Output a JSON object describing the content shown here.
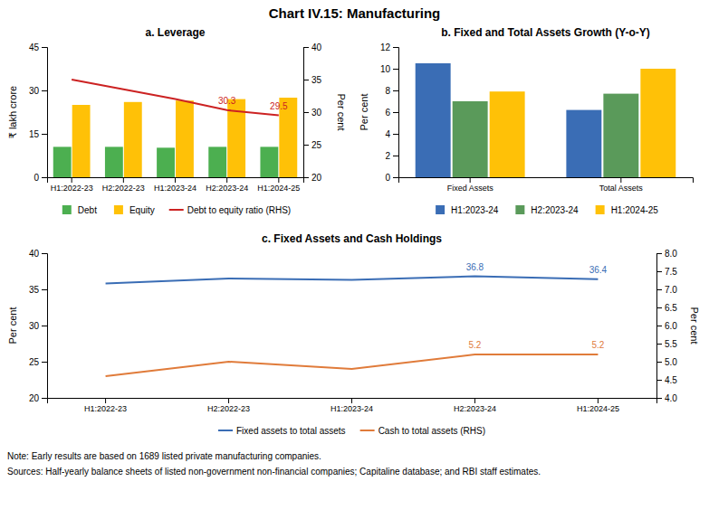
{
  "title": "Chart IV.15: Manufacturing",
  "chart_data": [
    {
      "type": "bar",
      "title": "a. Leverage",
      "categories": [
        "H1:2022-23",
        "H2:2022-23",
        "H1:2023-24",
        "H2:2023-24",
        "H1:2024-25"
      ],
      "series": [
        {
          "name": "Debt",
          "color": "#4CAF50",
          "values": [
            10.5,
            10.5,
            10.2,
            10.5,
            10.5
          ]
        },
        {
          "name": "Equity",
          "color": "#FFC107",
          "values": [
            25.0,
            26.0,
            26.5,
            27.0,
            27.5
          ]
        },
        {
          "name": "Debt to equity ratio (RHS)",
          "color": "#CC2222",
          "type": "line",
          "axis": "y2",
          "values": [
            35.0,
            33.5,
            32.0,
            30.3,
            29.5
          ]
        }
      ],
      "ylabel": "₹ lakh crore",
      "y2label": "Per cent",
      "ylim": [
        0,
        45
      ],
      "yticks": [
        0,
        15,
        30,
        45
      ],
      "y2lim": [
        20,
        40
      ],
      "y2ticks": [
        20,
        25,
        30,
        35,
        40
      ],
      "annotations": [
        {
          "text": "30.3",
          "x": "H2:2023-24",
          "y": 30.3,
          "axis": "y2"
        },
        {
          "text": "29.5",
          "x": "H1:2024-25",
          "y": 29.5,
          "axis": "y2"
        }
      ],
      "grid": false,
      "legend": "bottom"
    },
    {
      "type": "bar",
      "title": "b. Fixed and Total Assets Growth (Y-o-Y)",
      "categories": [
        "Fixed Assets",
        "Total Assets"
      ],
      "series": [
        {
          "name": "H1:2023-24",
          "color": "#3A6DB5",
          "values": [
            10.5,
            6.2
          ]
        },
        {
          "name": "H2:2023-24",
          "color": "#5A9A5A",
          "values": [
            7.0,
            7.7
          ]
        },
        {
          "name": "H1:2024-25",
          "color": "#FFC107",
          "values": [
            7.9,
            10.0
          ]
        }
      ],
      "ylabel": "Per cent",
      "ylim": [
        0,
        12
      ],
      "yticks": [
        0,
        2,
        4,
        6,
        8,
        10,
        12
      ],
      "grid": false,
      "legend": "bottom"
    },
    {
      "type": "line",
      "title": "c. Fixed Assets and Cash Holdings",
      "categories": [
        "H1:2022-23",
        "H2:2022-23",
        "H1:2023-24",
        "H2:2023-24",
        "H1:2024-25"
      ],
      "series": [
        {
          "name": "Fixed assets to total assets",
          "color": "#3A6DB5",
          "values": [
            35.8,
            36.5,
            36.3,
            36.8,
            36.4
          ]
        },
        {
          "name": "Cash to total assets (RHS)",
          "color": "#E07B3A",
          "axis": "y2",
          "values": [
            4.6,
            5.0,
            4.8,
            5.2,
            5.2
          ]
        }
      ],
      "ylabel": "Per cent",
      "y2label": "Per cent",
      "ylim": [
        20,
        40
      ],
      "yticks": [
        20,
        25,
        30,
        35,
        40
      ],
      "y2lim": [
        4.0,
        8.0
      ],
      "y2ticks": [
        {
          "value": 4.0,
          "label": "4.0"
        },
        {
          "value": 4.5,
          "label": "4.5"
        },
        {
          "value": 5.0,
          "label": "5.0"
        },
        {
          "value": 5.5,
          "label": "5.5"
        },
        {
          "value": 6.0,
          "label": "6.0"
        },
        {
          "value": 6.5,
          "label": "6.5"
        },
        {
          "value": 7.0,
          "label": "7.0"
        },
        {
          "value": 7.5,
          "label": "7.5"
        },
        {
          "value": 8.0,
          "label": "8.0"
        }
      ],
      "annotations": [
        {
          "text": "36.8",
          "x": "H2:2023-24",
          "y": 36.8,
          "axis": "y"
        },
        {
          "text": "36.4",
          "x": "H1:2024-25",
          "y": 36.4,
          "axis": "y"
        },
        {
          "text": "5.2",
          "x": "H2:2023-24",
          "y": 5.2,
          "axis": "y2"
        },
        {
          "text": "5.2",
          "x": "H1:2024-25",
          "y": 5.2,
          "axis": "y2"
        }
      ],
      "grid": false,
      "legend": "bottom"
    }
  ],
  "annotations": [
    "Note: Early results are based on 1689 listed private manufacturing companies.",
    "Sources: Half-yearly balance sheets of listed non-government non-financial companies; Capitaline database; and RBI staff estimates."
  ]
}
